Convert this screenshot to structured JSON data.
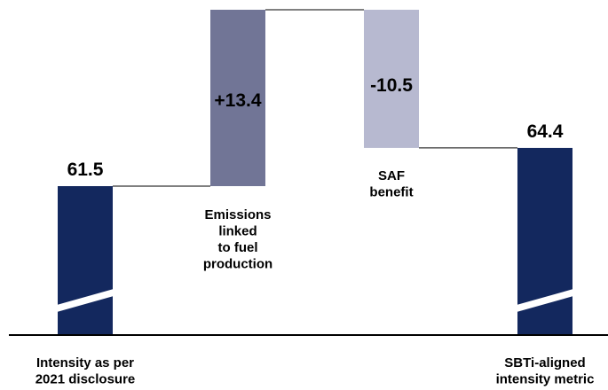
{
  "chart_data": {
    "type": "bar",
    "subtype": "waterfall",
    "categories": [
      "Intensity as per\n2021 disclosure",
      "Emissions\nlinked\nto fuel\nproduction",
      "SAF\nbenefit",
      "SBTi-aligned\nintensity metric"
    ],
    "series": [
      {
        "values": [
          61.5,
          13.4,
          -10.5,
          64.4
        ],
        "kinds": [
          "total",
          "delta",
          "delta",
          "total"
        ]
      }
    ],
    "data_labels": [
      "61.5",
      "+13.4",
      "-10.5",
      "64.4"
    ],
    "axis_break": true,
    "connectors": true,
    "colors": {
      "total": "#13285e",
      "increase": "#717596",
      "decrease": "#b7b9d0",
      "axis": "#000000",
      "connector": "#000000",
      "break": "#ffffff"
    }
  }
}
